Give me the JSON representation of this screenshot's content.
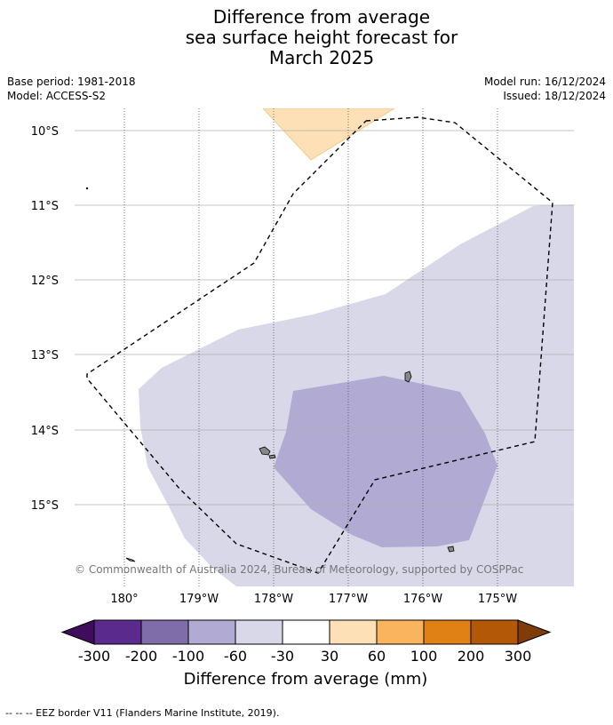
{
  "title": {
    "line1": "Difference from average",
    "line2": "sea surface height forecast for",
    "line3": "March 2025"
  },
  "meta": {
    "base_period": "Base period: 1981-2018",
    "model": "Model: ACCESS-S2",
    "model_run": "Model run: 16/12/2024",
    "issued": "Issued: 18/12/2024"
  },
  "map": {
    "lat_labels": [
      "10°S",
      "11°S",
      "12°S",
      "13°S",
      "14°S",
      "15°S"
    ],
    "lon_labels": [
      "180°",
      "179°W",
      "178°W",
      "177°W",
      "176°W",
      "175°W"
    ],
    "credit": "© Commonwealth of Australia 2024, Bureau of Meteorology, supported by COSPPac",
    "colors": {
      "band_minus60_minus30": "#d8d8e8",
      "band_minus100_minus60": "#b1aad2",
      "band_30_60": "#fde0b6",
      "land": "#888888",
      "eez_border": "#000000"
    }
  },
  "colorbar": {
    "title": "Difference from average (mm)",
    "ticks": [
      "-300",
      "-200",
      "-100",
      "-60",
      "-30",
      "30",
      "60",
      "100",
      "200",
      "300"
    ],
    "colors": [
      "#3f0d5c",
      "#5a2a8c",
      "#7f6daa",
      "#b1aad2",
      "#d8d8e8",
      "#ffffff",
      "#fde0b6",
      "#fab45e",
      "#e08116",
      "#b35806",
      "#7f3b08"
    ]
  },
  "footer": {
    "legend_text": "--  --  -- EEZ border V11 (Flanders Marine Institute, 2019)."
  }
}
